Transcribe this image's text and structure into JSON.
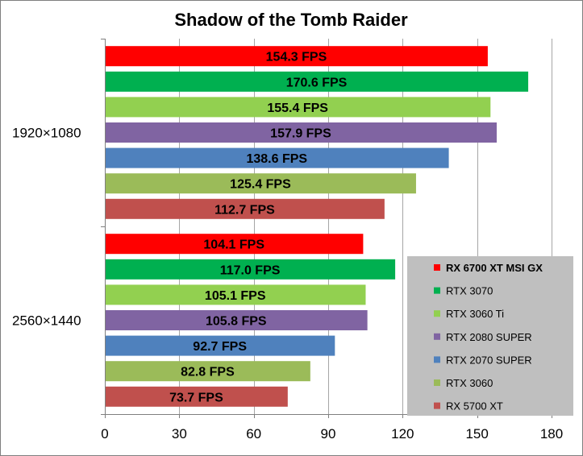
{
  "chart_data": {
    "type": "bar",
    "orientation": "horizontal",
    "title": "Shadow of the Tomb Raider",
    "categories": [
      "1920×1080",
      "2560×1440"
    ],
    "value_suffix": " FPS",
    "xlim": [
      0,
      180
    ],
    "xticks": [
      0,
      30,
      60,
      90,
      120,
      150,
      180
    ],
    "grid": true,
    "legend_position": "bottom-right",
    "series": [
      {
        "name": "RX 6700 XT MSI GX",
        "color": "#ff0000",
        "values": [
          154.3,
          104.1
        ],
        "bold_legend": true
      },
      {
        "name": "RTX 3070",
        "color": "#00b050",
        "values": [
          170.6,
          117.0
        ]
      },
      {
        "name": "RTX 3060 Ti",
        "color": "#92d050",
        "values": [
          155.4,
          105.1
        ]
      },
      {
        "name": "RTX 2080 SUPER",
        "color": "#8064a2",
        "values": [
          157.9,
          105.8
        ]
      },
      {
        "name": "RTX 2070 SUPER",
        "color": "#4f81bd",
        "values": [
          138.6,
          92.7
        ]
      },
      {
        "name": "RTX 3060",
        "color": "#9bbb59",
        "values": [
          125.4,
          82.8
        ]
      },
      {
        "name": "RX 5700 XT",
        "color": "#c0504d",
        "values": [
          112.7,
          73.7
        ]
      }
    ]
  }
}
